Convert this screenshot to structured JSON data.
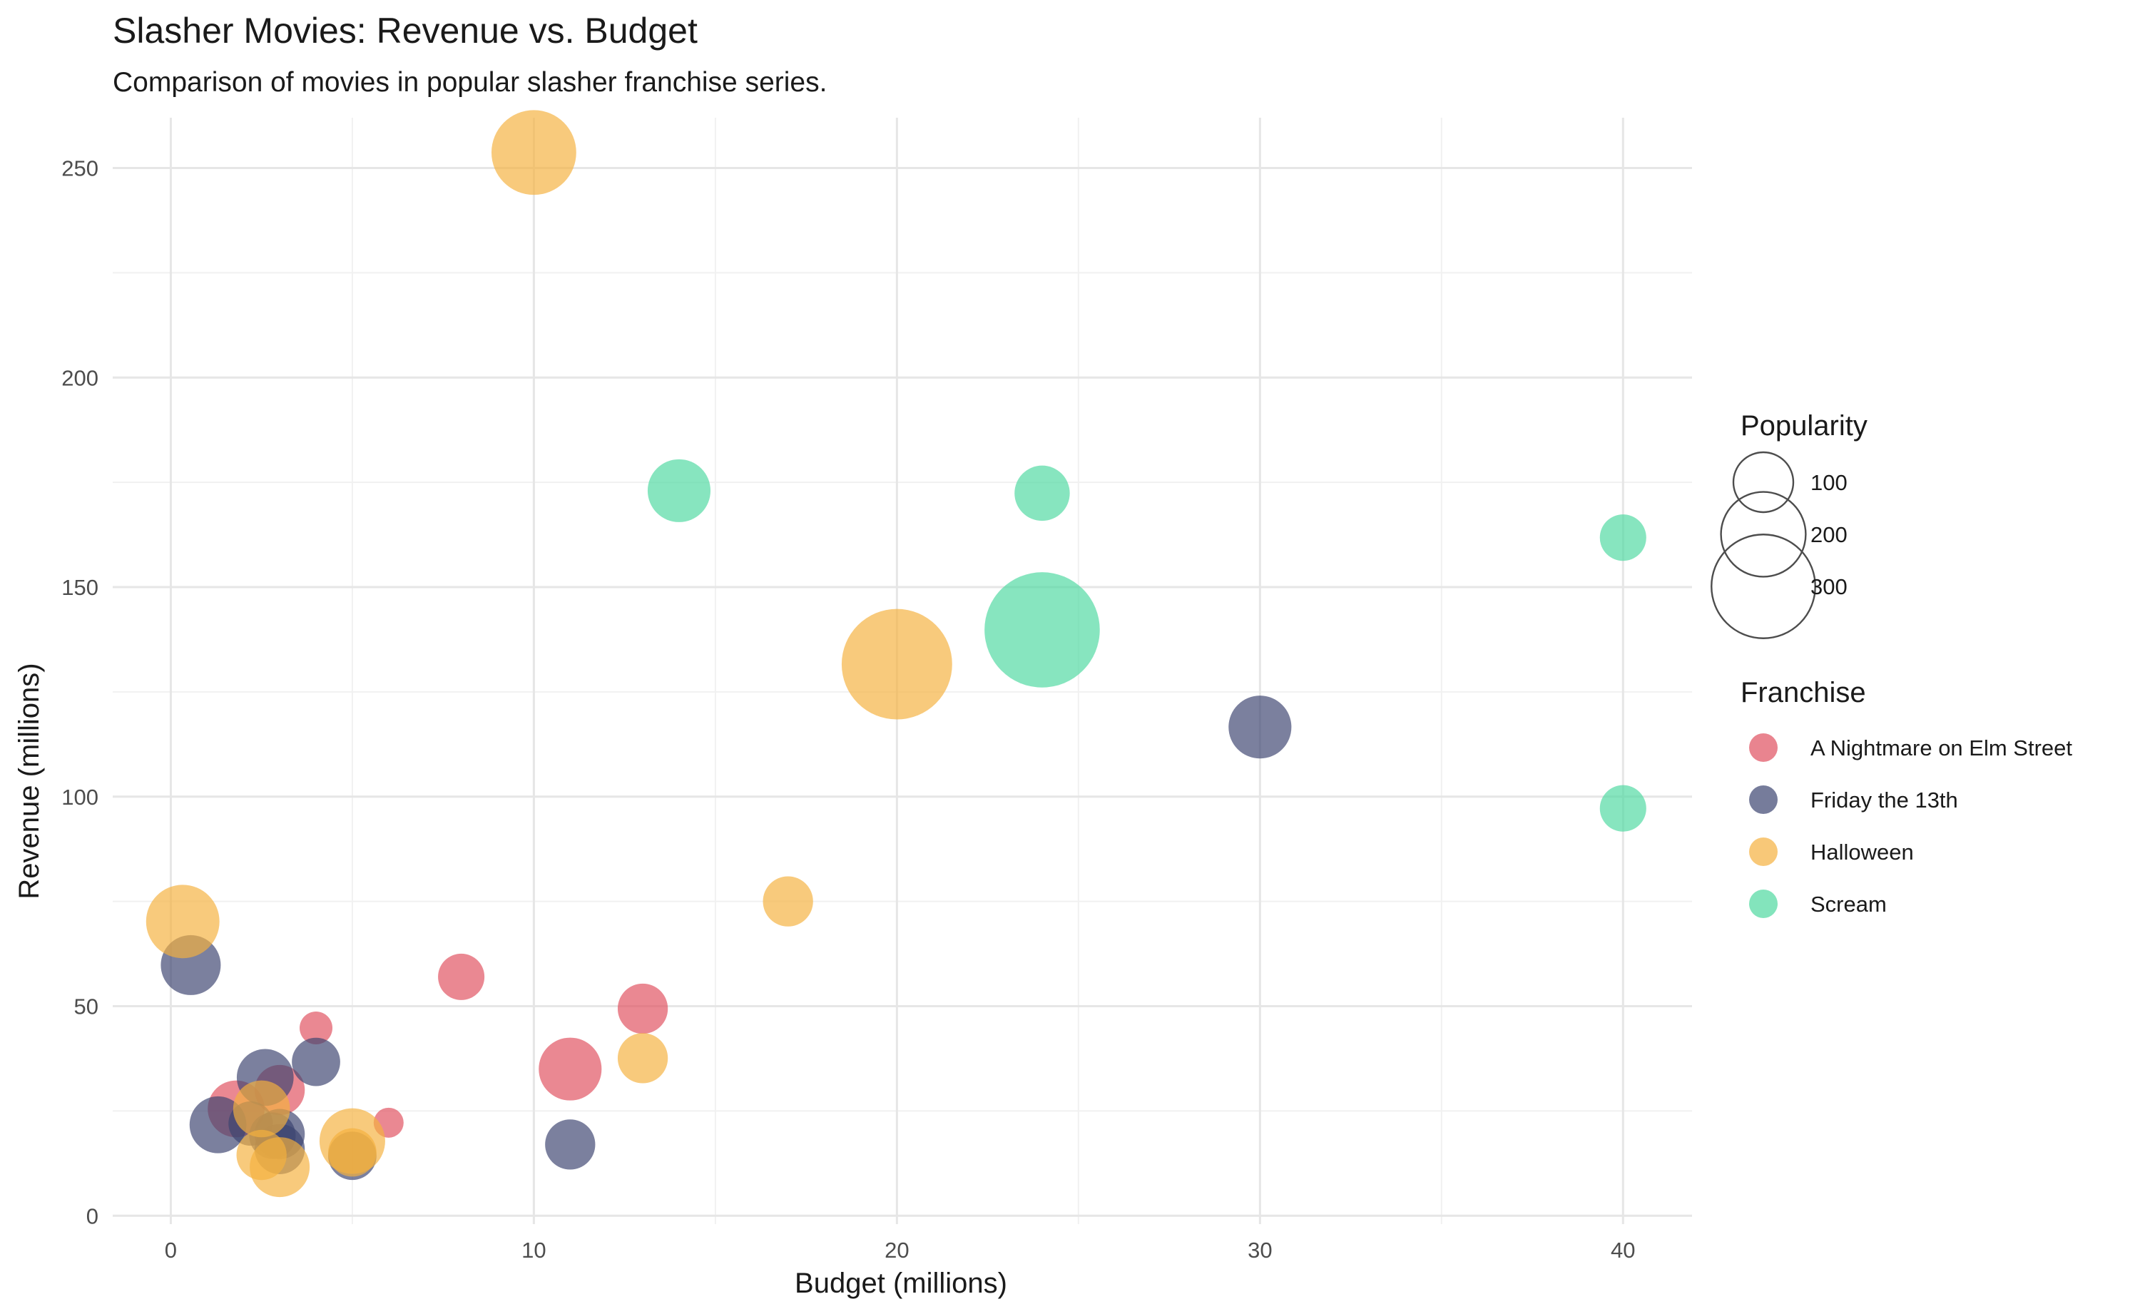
{
  "chart_data": {
    "type": "scatter",
    "title": "Slasher Movies: Revenue vs. Budget",
    "subtitle": "Comparison of movies in popular slasher franchise series.",
    "xlabel": "Budget (millions)",
    "ylabel": "Revenue (millions)",
    "xlim": [
      -1.6,
      41.9
    ],
    "ylim": [
      -2,
      262
    ],
    "x_ticks": [
      0,
      10,
      20,
      30,
      40
    ],
    "y_ticks": [
      0,
      50,
      100,
      150,
      200,
      250
    ],
    "grid": true,
    "legend_position": "right",
    "size_legend": {
      "title": "Popularity",
      "values": [
        100,
        200,
        300
      ]
    },
    "color_legend": {
      "title": "Franchise"
    },
    "series": [
      {
        "name": "A Nightmare on Elm Street",
        "color": "#E0505F",
        "points": [
          {
            "x": 1.8,
            "y": 25.5,
            "popularity": 90
          },
          {
            "x": 3.0,
            "y": 30.0,
            "popularity": 70
          },
          {
            "x": 4.0,
            "y": 44.8,
            "popularity": 30
          },
          {
            "x": 6.0,
            "y": 22.2,
            "popularity": 25
          },
          {
            "x": 8.0,
            "y": 57.0,
            "popularity": 60
          },
          {
            "x": 11.0,
            "y": 35.0,
            "popularity": 110
          },
          {
            "x": 13.0,
            "y": 49.4,
            "popularity": 70
          }
        ]
      },
      {
        "name": "Friday the 13th",
        "color": "#3C4470",
        "points": [
          {
            "x": 0.55,
            "y": 59.8,
            "popularity": 100
          },
          {
            "x": 1.3,
            "y": 21.7,
            "popularity": 90
          },
          {
            "x": 2.2,
            "y": 22.0,
            "popularity": 55
          },
          {
            "x": 2.6,
            "y": 33.0,
            "popularity": 90
          },
          {
            "x": 2.8,
            "y": 19.1,
            "popularity": 60
          },
          {
            "x": 3.0,
            "y": 19.5,
            "popularity": 70
          },
          {
            "x": 3.0,
            "y": 15.9,
            "popularity": 70
          },
          {
            "x": 4.0,
            "y": 36.7,
            "popularity": 65
          },
          {
            "x": 5.0,
            "y": 14.3,
            "popularity": 65
          },
          {
            "x": 11.0,
            "y": 17.0,
            "popularity": 70
          },
          {
            "x": 30.0,
            "y": 116.6,
            "popularity": 110
          }
        ]
      },
      {
        "name": "Halloween",
        "color": "#F5B13E",
        "points": [
          {
            "x": 0.33,
            "y": 70.2,
            "popularity": 150
          },
          {
            "x": 2.5,
            "y": 25.5,
            "popularity": 90
          },
          {
            "x": 2.5,
            "y": 14.5,
            "popularity": 70
          },
          {
            "x": 3.0,
            "y": 11.6,
            "popularity": 100
          },
          {
            "x": 5.0,
            "y": 17.8,
            "popularity": 120
          },
          {
            "x": 5.0,
            "y": 15.1,
            "popularity": 65
          },
          {
            "x": 10.0,
            "y": 253.7,
            "popularity": 200
          },
          {
            "x": 13.0,
            "y": 37.6,
            "popularity": 70
          },
          {
            "x": 17.0,
            "y": 75.0,
            "popularity": 70
          },
          {
            "x": 20.0,
            "y": 131.6,
            "popularity": 340
          }
        ]
      },
      {
        "name": "Scream",
        "color": "#4ED8A0",
        "points": [
          {
            "x": 14.0,
            "y": 173.0,
            "popularity": 110
          },
          {
            "x": 24.0,
            "y": 172.4,
            "popularity": 85
          },
          {
            "x": 24.0,
            "y": 139.8,
            "popularity": 370
          },
          {
            "x": 40.0,
            "y": 161.8,
            "popularity": 60
          },
          {
            "x": 40.0,
            "y": 97.2,
            "popularity": 60
          }
        ]
      }
    ]
  }
}
